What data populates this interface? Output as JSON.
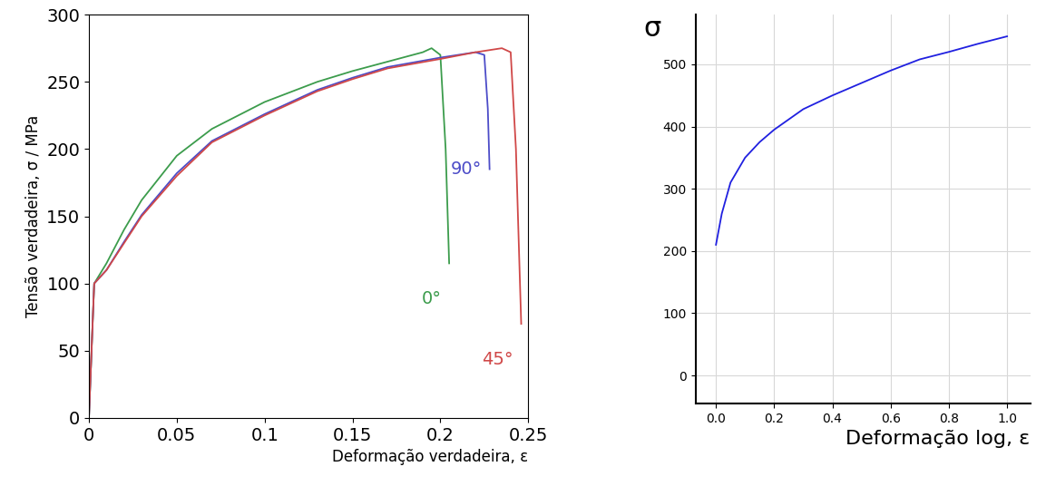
{
  "chart_data": [
    {
      "type": "line",
      "x_label": "Deformação verdadeira, ε",
      "y_label": "Tensão verdadeira, σ / MPa",
      "xlim": [
        0,
        0.25
      ],
      "xticks": [
        0,
        0.05,
        0.1,
        0.15,
        0.2,
        0.25
      ],
      "ylim": [
        0,
        300
      ],
      "yticks": [
        0,
        50,
        100,
        150,
        200,
        250,
        300
      ],
      "grid": false,
      "data_labels": false,
      "series": [
        {
          "name": "0°",
          "color": "#3c9c4c",
          "x": [
            0,
            0.003,
            0.01,
            0.02,
            0.03,
            0.05,
            0.07,
            0.1,
            0.13,
            0.15,
            0.17,
            0.19,
            0.195,
            0.2,
            0.203,
            0.205
          ],
          "values": [
            0,
            100,
            115,
            140,
            162,
            195,
            215,
            235,
            250,
            258,
            265,
            272,
            275,
            270,
            200,
            115
          ]
        },
        {
          "name": "90°",
          "color": "#4c4cc8",
          "x": [
            0,
            0.003,
            0.01,
            0.02,
            0.03,
            0.05,
            0.07,
            0.1,
            0.13,
            0.15,
            0.17,
            0.2,
            0.22,
            0.225,
            0.227,
            0.228
          ],
          "values": [
            0,
            100,
            110,
            131,
            151,
            182,
            206,
            226,
            244,
            253,
            261,
            268,
            272,
            270,
            230,
            185
          ]
        },
        {
          "name": "45°",
          "color": "#d04848",
          "x": [
            0,
            0.003,
            0.01,
            0.02,
            0.03,
            0.05,
            0.07,
            0.1,
            0.13,
            0.15,
            0.17,
            0.2,
            0.22,
            0.235,
            0.24,
            0.243,
            0.246
          ],
          "values": [
            0,
            100,
            110,
            130,
            150,
            180,
            205,
            225,
            243,
            252,
            260,
            267,
            272,
            275,
            272,
            200,
            70
          ]
        }
      ]
    },
    {
      "type": "line",
      "x_label": "Deformação log, ε",
      "y_label": "σ",
      "xlim": [
        -0.07,
        1.08
      ],
      "xticks": [
        0.0,
        0.2,
        0.4,
        0.6,
        0.8,
        1.0
      ],
      "ylim": [
        -45,
        580
      ],
      "yticks": [
        0,
        100,
        200,
        300,
        400,
        500
      ],
      "grid": true,
      "series": [
        {
          "name": null,
          "color": "#2020e0",
          "x": [
            0,
            0.02,
            0.05,
            0.1,
            0.15,
            0.2,
            0.3,
            0.4,
            0.5,
            0.6,
            0.7,
            0.8,
            0.9,
            1.0
          ],
          "values": [
            210,
            260,
            310,
            350,
            375,
            395,
            428,
            450,
            470,
            490,
            508,
            520,
            533,
            545
          ]
        }
      ]
    }
  ]
}
